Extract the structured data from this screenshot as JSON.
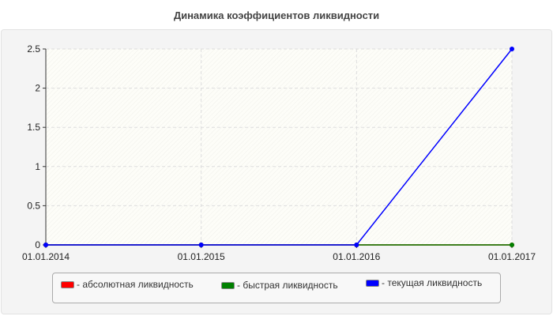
{
  "chart_data": {
    "type": "line",
    "title": "Динамика коэффициентов ликвидности",
    "categories": [
      "01.01.2014",
      "01.01.2015",
      "01.01.2016",
      "01.01.2017"
    ],
    "yticks": [
      "0",
      "0.5",
      "1",
      "1.5",
      "2",
      "2.5"
    ],
    "ylim": [
      0,
      2.5
    ],
    "grid": true,
    "legend_position": "bottom",
    "series": [
      {
        "name": "- абсолютная ликвидность",
        "color": "#ff0000",
        "values": [
          0,
          0,
          0,
          0
        ]
      },
      {
        "name": "- быстрая ликвидность",
        "color": "#008000",
        "values": [
          0,
          0,
          0,
          0
        ]
      },
      {
        "name": "- текущая ликвидность",
        "color": "#0000ff",
        "values": [
          0,
          0,
          0,
          2.5
        ]
      }
    ]
  }
}
